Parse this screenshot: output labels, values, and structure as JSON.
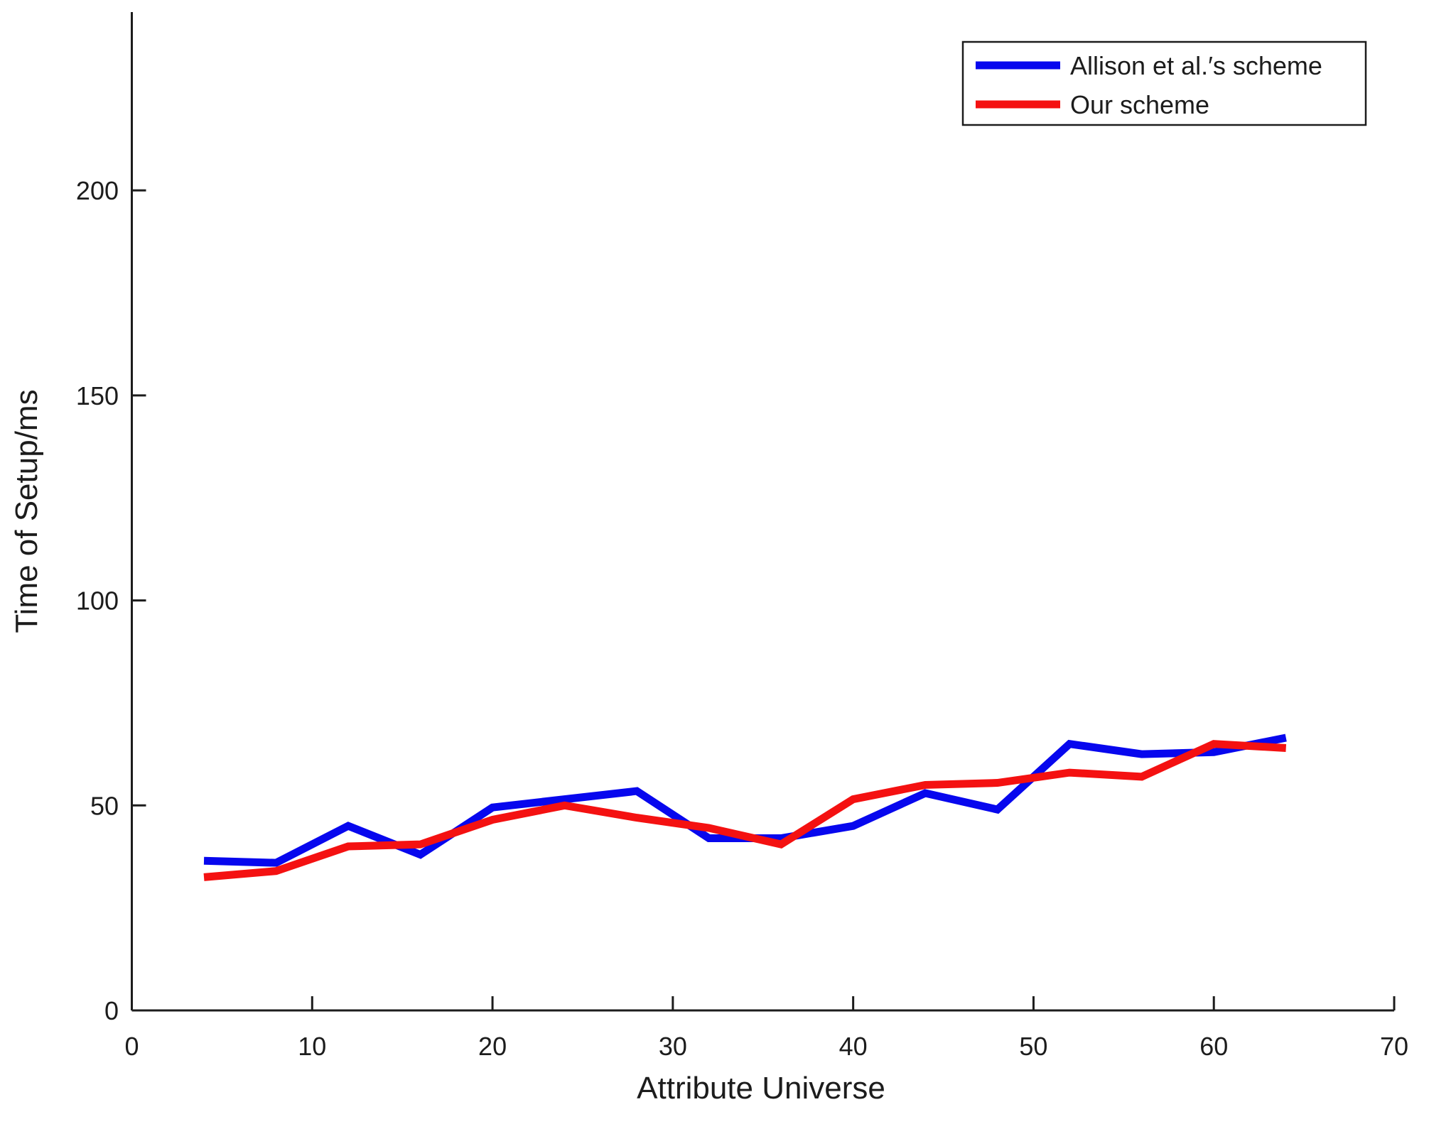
{
  "chart_data": {
    "type": "line",
    "title": "",
    "xlabel": "Attribute Universe",
    "ylabel": "Time of Setup/ms",
    "xlim": [
      0,
      70
    ],
    "ylim": [
      0,
      243.5
    ],
    "xticks": [
      0,
      10,
      20,
      30,
      40,
      50,
      60,
      70
    ],
    "yticks": [
      0,
      50,
      100,
      150,
      200
    ],
    "grid": false,
    "background_color": "#ffffff",
    "axis_color": "#1c1c1c",
    "legend_position": "top-right",
    "x": [
      4,
      8,
      12,
      16,
      20,
      24,
      28,
      32,
      36,
      40,
      44,
      48,
      52,
      56,
      60,
      64
    ],
    "series": [
      {
        "name": "Allison et al.′s scheme",
        "color": "#0707ee",
        "values": [
          36.5,
          36,
          45,
          38,
          49.5,
          51.5,
          53.5,
          42,
          42,
          45,
          53,
          49,
          65,
          62.5,
          63,
          66.5
        ]
      },
      {
        "name": "Our scheme",
        "color": "#f41111",
        "values": [
          32.5,
          34,
          40,
          40.5,
          46.5,
          50,
          47,
          44.5,
          40.5,
          51.5,
          55,
          55.5,
          58,
          57,
          65,
          64
        ]
      }
    ]
  }
}
